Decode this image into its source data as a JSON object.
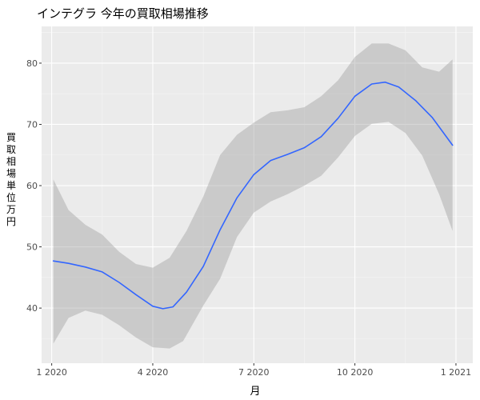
{
  "chart_data": {
    "type": "line",
    "title": "インテグラ 今年の買取相場推移",
    "xlabel": "月",
    "ylabel": "買取相場　単位　万円",
    "x_ticks": [
      {
        "label": "1 2020",
        "x": 1
      },
      {
        "label": "4 2020",
        "x": 4
      },
      {
        "label": "7 2020",
        "x": 7
      },
      {
        "label": "10 2020",
        "x": 10
      },
      {
        "label": "1 2021",
        "x": 13
      }
    ],
    "y_ticks": [
      40,
      50,
      60,
      70,
      80
    ],
    "xlim": [
      0.7,
      13.5
    ],
    "ylim": [
      31,
      86
    ],
    "grid": true,
    "series": [
      {
        "color": "#3366FF",
        "points": [
          [
            1.05,
            47.7
          ],
          [
            1.5,
            47.3
          ],
          [
            2.0,
            46.7
          ],
          [
            2.5,
            45.9
          ],
          [
            3.0,
            44.2
          ],
          [
            3.5,
            42.2
          ],
          [
            4.0,
            40.3
          ],
          [
            4.3,
            39.9
          ],
          [
            4.6,
            40.2
          ],
          [
            5.0,
            42.6
          ],
          [
            5.5,
            46.8
          ],
          [
            6.0,
            52.8
          ],
          [
            6.5,
            58.0
          ],
          [
            7.0,
            61.8
          ],
          [
            7.5,
            64.1
          ],
          [
            8.0,
            65.1
          ],
          [
            8.5,
            66.2
          ],
          [
            9.0,
            68.0
          ],
          [
            9.5,
            71.0
          ],
          [
            10.0,
            74.6
          ],
          [
            10.5,
            76.6
          ],
          [
            10.9,
            76.9
          ],
          [
            11.3,
            76.1
          ],
          [
            11.8,
            73.9
          ],
          [
            12.3,
            71.1
          ],
          [
            12.9,
            66.6
          ]
        ],
        "upper": [
          [
            1.05,
            61.0
          ],
          [
            1.5,
            56.0
          ],
          [
            2.0,
            53.6
          ],
          [
            2.5,
            52.0
          ],
          [
            3.0,
            49.2
          ],
          [
            3.5,
            47.2
          ],
          [
            4.0,
            46.6
          ],
          [
            4.5,
            48.2
          ],
          [
            5.0,
            52.6
          ],
          [
            5.5,
            58.2
          ],
          [
            6.0,
            65.0
          ],
          [
            6.5,
            68.3
          ],
          [
            7.0,
            70.3
          ],
          [
            7.5,
            72.0
          ],
          [
            8.0,
            72.3
          ],
          [
            8.5,
            72.8
          ],
          [
            9.0,
            74.6
          ],
          [
            9.5,
            77.2
          ],
          [
            10.0,
            81.0
          ],
          [
            10.5,
            83.2
          ],
          [
            11.0,
            83.2
          ],
          [
            11.5,
            82.1
          ],
          [
            12.0,
            79.3
          ],
          [
            12.5,
            78.6
          ],
          [
            12.9,
            80.6
          ]
        ],
        "lower": [
          [
            1.05,
            34.2
          ],
          [
            1.5,
            38.4
          ],
          [
            2.0,
            39.6
          ],
          [
            2.5,
            38.9
          ],
          [
            3.0,
            37.2
          ],
          [
            3.5,
            35.2
          ],
          [
            4.0,
            33.6
          ],
          [
            4.5,
            33.4
          ],
          [
            4.9,
            34.6
          ],
          [
            5.5,
            40.4
          ],
          [
            6.0,
            44.8
          ],
          [
            6.5,
            51.6
          ],
          [
            7.0,
            55.6
          ],
          [
            7.5,
            57.4
          ],
          [
            8.0,
            58.6
          ],
          [
            8.5,
            60.0
          ],
          [
            9.0,
            61.6
          ],
          [
            9.5,
            64.6
          ],
          [
            10.0,
            68.1
          ],
          [
            10.5,
            70.1
          ],
          [
            11.0,
            70.4
          ],
          [
            11.5,
            68.6
          ],
          [
            12.0,
            64.9
          ],
          [
            12.5,
            58.6
          ],
          [
            12.9,
            52.6
          ]
        ]
      }
    ]
  }
}
